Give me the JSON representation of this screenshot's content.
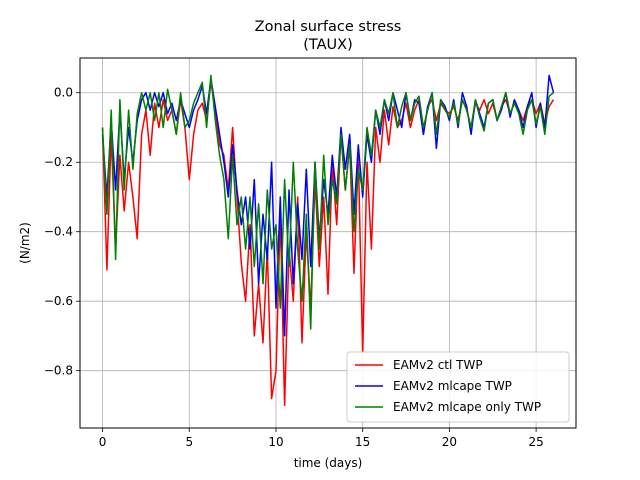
{
  "chart_data": {
    "type": "line",
    "title": "Zonal surface stress",
    "subtitle": "(TAUX)",
    "xlabel": "time (days)",
    "ylabel": "(N/m2)",
    "xlim": [
      -1.3,
      27.3
    ],
    "ylim": [
      -0.965,
      0.1
    ],
    "xticks": [
      0,
      5,
      10,
      15,
      20,
      25
    ],
    "xtick_labels": [
      "0",
      "5",
      "10",
      "15",
      "20",
      "25"
    ],
    "yticks": [
      0.0,
      -0.2,
      -0.4,
      -0.6,
      -0.8
    ],
    "ytick_labels": [
      "0.0",
      "−0.2",
      "−0.4",
      "−0.6",
      "−0.8"
    ],
    "grid": true,
    "legend_position": "lower-right",
    "series": [
      {
        "name": "EAMv2 ctl TWP",
        "color": "#ff0000",
        "x": [
          0,
          0.25,
          0.5,
          0.75,
          1,
          1.25,
          1.5,
          1.75,
          2,
          2.25,
          2.5,
          2.75,
          3,
          3.25,
          3.5,
          3.75,
          4,
          4.25,
          4.5,
          4.75,
          5,
          5.25,
          5.5,
          5.75,
          6,
          6.25,
          6.5,
          6.75,
          7,
          7.25,
          7.5,
          7.75,
          8,
          8.25,
          8.5,
          8.75,
          9,
          9.25,
          9.5,
          9.75,
          10,
          10.25,
          10.5,
          10.75,
          11,
          11.25,
          11.5,
          11.75,
          12,
          12.25,
          12.5,
          12.75,
          13,
          13.25,
          13.5,
          13.75,
          14,
          14.25,
          14.5,
          14.75,
          15,
          15.25,
          15.5,
          15.75,
          16,
          16.25,
          16.5,
          16.75,
          17,
          17.25,
          17.5,
          17.75,
          18,
          18.25,
          18.5,
          18.75,
          19,
          19.25,
          19.5,
          19.75,
          20,
          20.25,
          20.5,
          20.75,
          21,
          21.25,
          21.5,
          21.75,
          22,
          22.25,
          22.5,
          22.75,
          23,
          23.25,
          23.5,
          23.75,
          24,
          24.25,
          24.5,
          24.75,
          25,
          25.25,
          25.5,
          25.75,
          26
        ],
        "y": [
          -0.1,
          -0.51,
          -0.12,
          -0.45,
          -0.18,
          -0.34,
          -0.2,
          -0.3,
          -0.42,
          -0.12,
          -0.05,
          -0.18,
          -0.03,
          -0.1,
          -0.02,
          -0.08,
          -0.05,
          -0.12,
          -0.02,
          -0.1,
          -0.25,
          -0.12,
          -0.05,
          -0.03,
          -0.08,
          0.03,
          -0.05,
          -0.15,
          -0.18,
          -0.28,
          -0.1,
          -0.3,
          -0.49,
          -0.6,
          -0.38,
          -0.7,
          -0.55,
          -0.72,
          -0.45,
          -0.88,
          -0.8,
          -0.35,
          -0.9,
          -0.45,
          -0.6,
          -0.3,
          -0.72,
          -0.4,
          -0.62,
          -0.25,
          -0.5,
          -0.3,
          -0.58,
          -0.2,
          -0.38,
          -0.12,
          -0.28,
          -0.15,
          -0.52,
          -0.18,
          -0.75,
          -0.2,
          -0.45,
          -0.1,
          -0.2,
          -0.05,
          -0.15,
          -0.04,
          -0.1,
          -0.08,
          -0.03,
          -0.1,
          -0.05,
          -0.02,
          -0.12,
          -0.04,
          -0.02,
          -0.08,
          -0.03,
          -0.05,
          -0.06,
          -0.04,
          -0.08,
          -0.02,
          -0.05,
          -0.1,
          -0.03,
          -0.05,
          -0.02,
          -0.06,
          -0.03,
          -0.08,
          -0.04,
          -0.02,
          -0.06,
          -0.03,
          -0.05,
          -0.08,
          -0.04,
          -0.02,
          -0.06,
          -0.03,
          -0.09,
          -0.04,
          -0.02
        ]
      },
      {
        "name": "EAMv2 mlcape TWP",
        "color": "#0000ff",
        "x": [
          0,
          0.25,
          0.5,
          0.75,
          1,
          1.25,
          1.5,
          1.75,
          2,
          2.25,
          2.5,
          2.75,
          3,
          3.25,
          3.5,
          3.75,
          4,
          4.25,
          4.5,
          4.75,
          5,
          5.25,
          5.5,
          5.75,
          6,
          6.25,
          6.5,
          6.75,
          7,
          7.25,
          7.5,
          7.75,
          8,
          8.25,
          8.5,
          8.75,
          9,
          9.25,
          9.5,
          9.75,
          10,
          10.25,
          10.5,
          10.75,
          11,
          11.25,
          11.5,
          11.75,
          12,
          12.25,
          12.5,
          12.75,
          13,
          13.25,
          13.5,
          13.75,
          14,
          14.25,
          14.5,
          14.75,
          15,
          15.25,
          15.5,
          15.75,
          16,
          16.25,
          16.5,
          16.75,
          17,
          17.25,
          17.5,
          17.75,
          18,
          18.25,
          18.5,
          18.75,
          19,
          19.25,
          19.5,
          19.75,
          20,
          20.25,
          20.5,
          20.75,
          21,
          21.25,
          21.5,
          21.75,
          22,
          22.25,
          22.5,
          22.75,
          23,
          23.25,
          23.5,
          23.75,
          24,
          24.25,
          24.5,
          24.75,
          25,
          25.25,
          25.5,
          25.75,
          26
        ],
        "y": [
          -0.12,
          -0.3,
          -0.08,
          -0.28,
          -0.05,
          -0.25,
          -0.1,
          -0.2,
          -0.08,
          -0.02,
          0.0,
          -0.05,
          0.0,
          -0.04,
          0.0,
          -0.06,
          -0.03,
          -0.08,
          -0.02,
          -0.06,
          -0.1,
          -0.05,
          -0.02,
          0.02,
          -0.06,
          0.04,
          -0.04,
          -0.12,
          -0.2,
          -0.3,
          -0.15,
          -0.28,
          -0.38,
          -0.3,
          -0.45,
          -0.25,
          -0.55,
          -0.35,
          -0.48,
          -0.2,
          -0.62,
          -0.3,
          -0.7,
          -0.28,
          -0.55,
          -0.32,
          -0.48,
          -0.22,
          -0.5,
          -0.2,
          -0.42,
          -0.25,
          -0.35,
          -0.18,
          -0.3,
          -0.1,
          -0.22,
          -0.12,
          -0.35,
          -0.15,
          -0.3,
          -0.12,
          -0.2,
          -0.05,
          -0.12,
          -0.02,
          -0.08,
          0.0,
          -0.05,
          -0.1,
          0.0,
          -0.08,
          -0.02,
          -0.03,
          -0.12,
          -0.04,
          0.0,
          -0.16,
          -0.02,
          -0.04,
          -0.08,
          -0.02,
          -0.1,
          0.0,
          -0.04,
          -0.12,
          -0.02,
          -0.06,
          -0.1,
          -0.03,
          -0.02,
          -0.08,
          -0.05,
          0.0,
          -0.07,
          -0.02,
          -0.05,
          -0.1,
          -0.04,
          0.0,
          -0.1,
          -0.03,
          -0.1,
          0.05,
          0.0
        ]
      },
      {
        "name": "EAMv2 mlcape only TWP",
        "color": "#008000",
        "x": [
          0,
          0.25,
          0.5,
          0.75,
          1,
          1.25,
          1.5,
          1.75,
          2,
          2.25,
          2.5,
          2.75,
          3,
          3.25,
          3.5,
          3.75,
          4,
          4.25,
          4.5,
          4.75,
          5,
          5.25,
          5.5,
          5.75,
          6,
          6.25,
          6.5,
          6.75,
          7,
          7.25,
          7.5,
          7.75,
          8,
          8.25,
          8.5,
          8.75,
          9,
          9.25,
          9.5,
          9.75,
          10,
          10.25,
          10.5,
          10.75,
          11,
          11.25,
          11.5,
          11.75,
          12,
          12.25,
          12.5,
          12.75,
          13,
          13.25,
          13.5,
          13.75,
          14,
          14.25,
          14.5,
          14.75,
          15,
          15.25,
          15.5,
          15.75,
          16,
          16.25,
          16.5,
          16.75,
          17,
          17.25,
          17.5,
          17.75,
          18,
          18.25,
          18.5,
          18.75,
          19,
          19.25,
          19.5,
          19.75,
          20,
          20.25,
          20.5,
          20.75,
          21,
          21.25,
          21.5,
          21.75,
          22,
          22.25,
          22.5,
          22.75,
          23,
          23.25,
          23.5,
          23.75,
          24,
          24.25,
          24.5,
          24.75,
          25,
          25.25,
          25.5,
          25.75,
          26
        ],
        "y": [
          -0.1,
          -0.35,
          -0.05,
          -0.48,
          -0.02,
          -0.28,
          -0.05,
          -0.22,
          -0.06,
          0.0,
          -0.05,
          0.0,
          -0.08,
          0.0,
          -0.1,
          0.01,
          -0.05,
          -0.12,
          0.0,
          -0.1,
          -0.08,
          -0.03,
          0.0,
          0.03,
          -0.1,
          0.05,
          -0.08,
          -0.18,
          -0.25,
          -0.42,
          -0.18,
          -0.38,
          -0.3,
          -0.45,
          -0.3,
          -0.5,
          -0.32,
          -0.55,
          -0.28,
          -0.45,
          -0.38,
          -0.62,
          -0.25,
          -0.5,
          -0.2,
          -0.45,
          -0.6,
          -0.35,
          -0.68,
          -0.2,
          -0.45,
          -0.18,
          -0.38,
          -0.25,
          -0.32,
          -0.12,
          -0.28,
          -0.15,
          -0.4,
          -0.22,
          -0.28,
          -0.1,
          -0.18,
          -0.05,
          -0.1,
          -0.02,
          -0.06,
          0.0,
          -0.1,
          -0.04,
          0.0,
          -0.08,
          -0.03,
          -0.01,
          -0.1,
          -0.05,
          0.0,
          -0.12,
          -0.02,
          -0.05,
          -0.07,
          -0.03,
          -0.09,
          -0.02,
          -0.05,
          -0.1,
          -0.02,
          -0.07,
          -0.11,
          -0.03,
          -0.02,
          -0.08,
          -0.04,
          0.0,
          -0.06,
          -0.03,
          -0.06,
          -0.12,
          -0.05,
          -0.02,
          -0.09,
          -0.04,
          -0.12,
          -0.01,
          0.0
        ]
      }
    ]
  }
}
